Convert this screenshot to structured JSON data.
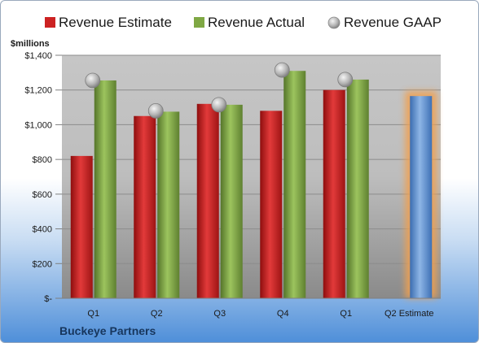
{
  "chart_data": {
    "type": "bar",
    "unit_label": "$millions",
    "company": "Buckeye Partners",
    "categories": [
      "Q1",
      "Q2",
      "Q3",
      "Q4",
      "Q1",
      "Q2 Estimate"
    ],
    "ylim": [
      0,
      1400
    ],
    "yticks": [
      0,
      200,
      400,
      600,
      800,
      1000,
      1200,
      1400
    ],
    "ytick_labels": [
      "$-",
      "$200",
      "$400",
      "$600",
      "$800",
      "$1,000",
      "$1,200",
      "$1,400"
    ],
    "grid": true,
    "legend_position": "top",
    "series": [
      {
        "name": "Revenue Estimate",
        "kind": "bar",
        "color": "#cc2222",
        "values": [
          820,
          1050,
          1120,
          1080,
          1200,
          null
        ]
      },
      {
        "name": "Revenue Actual",
        "kind": "bar",
        "color": "#7fa844",
        "values": [
          1255,
          1075,
          1115,
          1310,
          1260,
          null
        ]
      },
      {
        "name": "Revenue GAAP",
        "kind": "marker",
        "color": "#b8b8b8",
        "values": [
          1255,
          1080,
          1115,
          1315,
          1260,
          null
        ]
      },
      {
        "name": "",
        "kind": "bar",
        "color": "#5b8fd0",
        "highlight": "#f0a050",
        "values": [
          null,
          null,
          null,
          null,
          null,
          1165
        ]
      }
    ]
  }
}
